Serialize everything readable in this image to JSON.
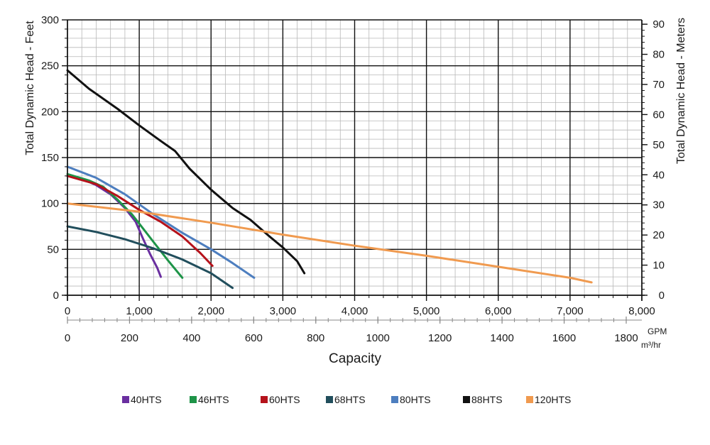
{
  "chart_data": {
    "type": "line",
    "ylabel_left": "Total Dynamic Head - Feet",
    "ylabel_right": "Total Dynamic Head - Meters",
    "xlabel": "Capacity",
    "x_unit_gpm": "GPM",
    "x_unit_m3": "m³/hr",
    "xlim_gpm": [
      0,
      8000
    ],
    "ylim_feet": [
      0,
      300
    ],
    "ylim_meters": [
      0,
      90
    ],
    "xlim_m3": [
      0,
      1800
    ],
    "x_ticks_gpm": [
      "0",
      "1,000",
      "2,000",
      "3,000",
      "4,000",
      "5,000",
      "6,000",
      "7,000",
      "8,000"
    ],
    "x_ticks_m3": [
      "0",
      "200",
      "400",
      "600",
      "800",
      "1000",
      "1200",
      "1400",
      "1600",
      "1800"
    ],
    "y_ticks_feet": [
      "0",
      "50",
      "100",
      "150",
      "200",
      "250",
      "300"
    ],
    "y_ticks_meters": [
      "0",
      "10",
      "20",
      "30",
      "40",
      "50",
      "60",
      "70",
      "80",
      "90"
    ],
    "grid": true,
    "legend_position": "bottom",
    "series": [
      {
        "name": "40HTS",
        "color": "#6a2fa0",
        "points": [
          [
            0,
            130
          ],
          [
            200,
            127
          ],
          [
            400,
            120
          ],
          [
            600,
            110
          ],
          [
            800,
            95
          ],
          [
            950,
            80
          ],
          [
            1050,
            62
          ],
          [
            1150,
            45
          ],
          [
            1250,
            30
          ],
          [
            1300,
            20
          ]
        ]
      },
      {
        "name": "46HTS",
        "color": "#1e9448",
        "points": [
          [
            0,
            132
          ],
          [
            300,
            125
          ],
          [
            500,
            118
          ],
          [
            700,
            104
          ],
          [
            900,
            88
          ],
          [
            1000,
            78
          ],
          [
            1200,
            58
          ],
          [
            1400,
            38
          ],
          [
            1600,
            19
          ]
        ]
      },
      {
        "name": "60HTS",
        "color": "#b5121b",
        "points": [
          [
            0,
            130
          ],
          [
            400,
            121
          ],
          [
            700,
            108
          ],
          [
            1000,
            93
          ],
          [
            1300,
            80
          ],
          [
            1600,
            64
          ],
          [
            1850,
            46
          ],
          [
            2020,
            32
          ]
        ]
      },
      {
        "name": "68HTS",
        "color": "#214e5c",
        "points": [
          [
            0,
            75
          ],
          [
            400,
            69
          ],
          [
            800,
            61
          ],
          [
            1200,
            51
          ],
          [
            1600,
            39
          ],
          [
            2000,
            24
          ],
          [
            2300,
            8
          ]
        ]
      },
      {
        "name": "80HTS",
        "color": "#4d7ebf",
        "points": [
          [
            0,
            140
          ],
          [
            400,
            128
          ],
          [
            800,
            110
          ],
          [
            1200,
            88
          ],
          [
            1600,
            68
          ],
          [
            2000,
            50
          ],
          [
            2300,
            35
          ],
          [
            2600,
            19
          ]
        ]
      },
      {
        "name": "88HTS",
        "color": "#111111",
        "points": [
          [
            0,
            245
          ],
          [
            300,
            225
          ],
          [
            700,
            203
          ],
          [
            1000,
            185
          ],
          [
            1300,
            168
          ],
          [
            1500,
            157
          ],
          [
            1700,
            138
          ],
          [
            2000,
            115
          ],
          [
            2300,
            95
          ],
          [
            2550,
            82
          ],
          [
            2800,
            65
          ],
          [
            3000,
            52
          ],
          [
            3200,
            37
          ],
          [
            3300,
            24
          ]
        ]
      },
      {
        "name": "120HTS",
        "color": "#f09a4f",
        "points": [
          [
            0,
            100
          ],
          [
            1000,
            91
          ],
          [
            2000,
            79
          ],
          [
            3000,
            66
          ],
          [
            4000,
            54
          ],
          [
            5000,
            43
          ],
          [
            6000,
            31
          ],
          [
            7000,
            19
          ],
          [
            7300,
            14
          ]
        ]
      }
    ]
  }
}
